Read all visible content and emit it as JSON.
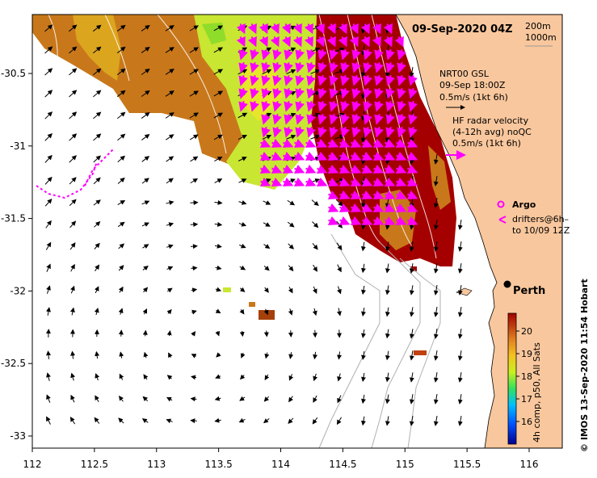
{
  "title": "09-Sep-2020 04Z",
  "isobaths": [
    "200m",
    "1000m"
  ],
  "legend": {
    "gsl_title": "NRT00 GSL",
    "gsl_time": "09-Sep 18:00Z",
    "gsl_scale": "0.5m/s (1kt 6h)",
    "hf_title": "HF radar velocity",
    "hf_avg": "(4-12h avg) noQC",
    "hf_scale": "0.5m/s (1kt 6h)",
    "argo": "Argo",
    "drifters_1": "drifters@6h–",
    "drifters_2": "to 10/09 12Z"
  },
  "city": "Perth",
  "colorbar": {
    "ticks": [
      "20",
      "19",
      "18",
      "17",
      "16"
    ],
    "label": "4h comp, p50, All Sats"
  },
  "credit": "©  IMOS 13-Sep-2020 11:54 Hobart",
  "x_ticks": [
    "112",
    "112.5",
    "113",
    "113.5",
    "114",
    "114.5",
    "115",
    "115.5",
    "116"
  ],
  "y_ticks": [
    "-30.5",
    "-31",
    "-31.5",
    "-32",
    "-32.5",
    "-33"
  ],
  "colors": {
    "land": "#f9c79d",
    "hot": "#a50000",
    "warm": "#c8781a",
    "mid": "#dca51e",
    "cool": "#c8e632",
    "green": "#8fdc2a",
    "hf_arrow": "#ff00ff"
  }
}
